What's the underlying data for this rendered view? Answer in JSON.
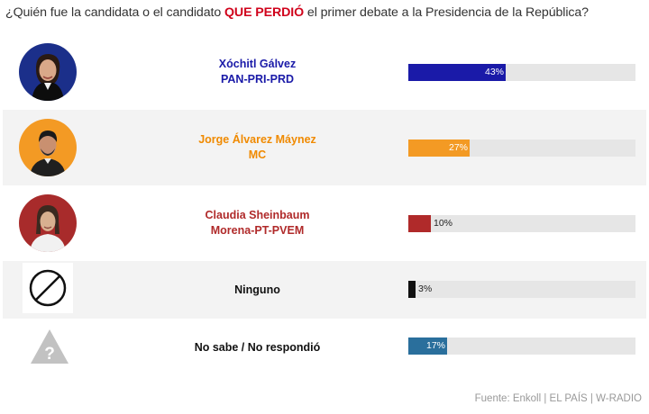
{
  "question": {
    "before": "¿Quién fue la candidata o el candidato ",
    "highlight": "QUE PERDIÓ",
    "after": " el primer debate a la Presidencia de la República?"
  },
  "chart_data": {
    "type": "bar",
    "orientation": "horizontal",
    "xlim": [
      0,
      100
    ],
    "unit": "%",
    "categories": [
      "Xóchitl Gálvez PAN-PRI-PRD",
      "Jorge Álvarez Máynez MC",
      "Claudia Sheinbaum Morena-PT-PVEM",
      "Ninguno",
      "No sabe / No respondió"
    ],
    "values": [
      43,
      27,
      10,
      3,
      17
    ],
    "bars": [
      {
        "line1": "Xóchitl Gálvez",
        "line2": "PAN-PRI-PRD",
        "value": 43,
        "label": "43%",
        "color": "#1a1aa8",
        "name_color": "#1a1aa8",
        "icon": "candidate-photo-xochitl-galvez"
      },
      {
        "line1": "Jorge Álvarez Máynez",
        "line2": "MC",
        "value": 27,
        "label": "27%",
        "color": "#f39a24",
        "name_color": "#f08a00",
        "icon": "candidate-photo-jorge-alvarez-maynez"
      },
      {
        "line1": "Claudia Sheinbaum",
        "line2": "Morena-PT-PVEM",
        "value": 10,
        "label": "10%",
        "color": "#b02a2a",
        "name_color": "#b02a2a",
        "icon": "candidate-photo-claudia-sheinbaum"
      },
      {
        "line1": "Ninguno",
        "line2": "",
        "value": 3,
        "label": "3%",
        "color": "#111111",
        "name_color": "#111111",
        "icon": "prohibited-circle-icon"
      },
      {
        "line1": "No sabe / No respondió",
        "line2": "",
        "value": 17,
        "label": "17%",
        "color": "#2a6f9c",
        "name_color": "#111111",
        "icon": "question-triangle-icon"
      }
    ],
    "track_color": "#e6e6e6"
  },
  "source": "Fuente: Enkoll | EL PAÍS | W-RADIO"
}
